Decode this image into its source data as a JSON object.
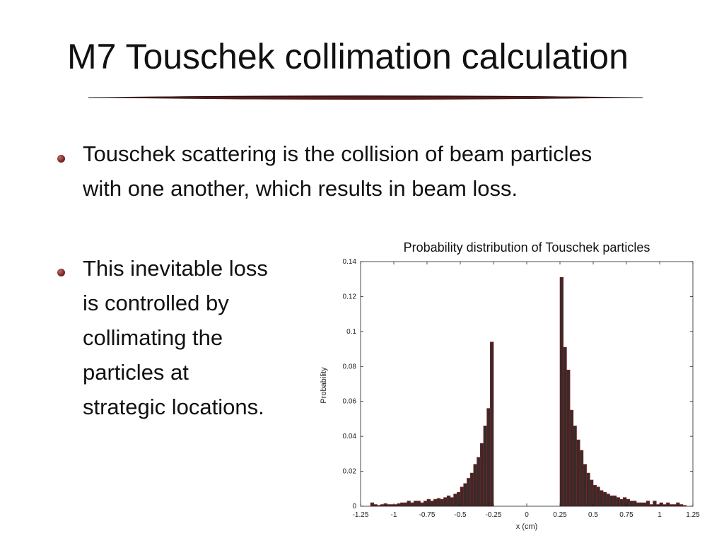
{
  "slide": {
    "title": "M7 Touschek collimation calculation",
    "bullets": [
      {
        "lines": [
          "Touschek scattering is the collision of beam particles",
          "with one another, which results in beam loss."
        ]
      },
      {
        "lines": [
          "This inevitable loss",
          "is controlled by",
          "collimating the",
          "particles at",
          "strategic locations."
        ]
      }
    ],
    "accent_color": "#7a2424"
  },
  "chart_data": {
    "type": "bar",
    "title": "Probability distribution of Touschek particles",
    "xlabel": "x (cm)",
    "ylabel": "Probability",
    "xlim": [
      -1.25,
      1.25
    ],
    "ylim": [
      0,
      0.14
    ],
    "x_ticks": [
      "-1.25",
      "-1",
      "-0.75",
      "-0.5",
      "-0.25",
      "0",
      "0.25",
      "0.5",
      "0.75",
      "1",
      "1.25"
    ],
    "y_ticks": [
      "0",
      "0.02",
      "0.04",
      "0.06",
      "0.08",
      "0.1",
      "0.12",
      "0.14"
    ],
    "bar_width": 0.025,
    "bar_color": "#3a2a2a",
    "bar_edge_color": "#8b2020",
    "bin_centers": [
      -1.1625,
      -1.1375,
      -1.1125,
      -1.0875,
      -1.0625,
      -1.0375,
      -1.0125,
      -0.9875,
      -0.9625,
      -0.9375,
      -0.9125,
      -0.8875,
      -0.8625,
      -0.8375,
      -0.8125,
      -0.7875,
      -0.7625,
      -0.7375,
      -0.7125,
      -0.6875,
      -0.6625,
      -0.6375,
      -0.6125,
      -0.5875,
      -0.5625,
      -0.5375,
      -0.5125,
      -0.4875,
      -0.4625,
      -0.4375,
      -0.4125,
      -0.3875,
      -0.3625,
      -0.3375,
      -0.3125,
      -0.2875,
      -0.2625,
      0.2625,
      0.2875,
      0.3125,
      0.3375,
      0.3625,
      0.3875,
      0.4125,
      0.4375,
      0.4625,
      0.4875,
      0.5125,
      0.5375,
      0.5625,
      0.5875,
      0.6125,
      0.6375,
      0.6625,
      0.6875,
      0.7125,
      0.7375,
      0.7625,
      0.7875,
      0.8125,
      0.8375,
      0.8625,
      0.8875,
      0.9125,
      0.9375,
      0.9625,
      0.9875,
      1.0125,
      1.0375,
      1.0625,
      1.0875,
      1.1125,
      1.1375,
      1.1625,
      1.1875
    ],
    "values": [
      0.002,
      0.001,
      0.0005,
      0.001,
      0.0015,
      0.001,
      0.001,
      0.001,
      0.0015,
      0.002,
      0.002,
      0.003,
      0.002,
      0.003,
      0.003,
      0.002,
      0.003,
      0.004,
      0.003,
      0.004,
      0.0045,
      0.004,
      0.005,
      0.006,
      0.005,
      0.007,
      0.008,
      0.011,
      0.013,
      0.016,
      0.019,
      0.024,
      0.028,
      0.036,
      0.046,
      0.056,
      0.094,
      0.131,
      0.091,
      0.078,
      0.055,
      0.046,
      0.038,
      0.032,
      0.024,
      0.019,
      0.015,
      0.012,
      0.011,
      0.009,
      0.008,
      0.007,
      0.006,
      0.006,
      0.005,
      0.004,
      0.005,
      0.004,
      0.003,
      0.003,
      0.002,
      0.002,
      0.002,
      0.003,
      0.001,
      0.003,
      0.001,
      0.002,
      0.001,
      0.002,
      0.001,
      0.001,
      0.002,
      0.001,
      0.0005
    ]
  }
}
